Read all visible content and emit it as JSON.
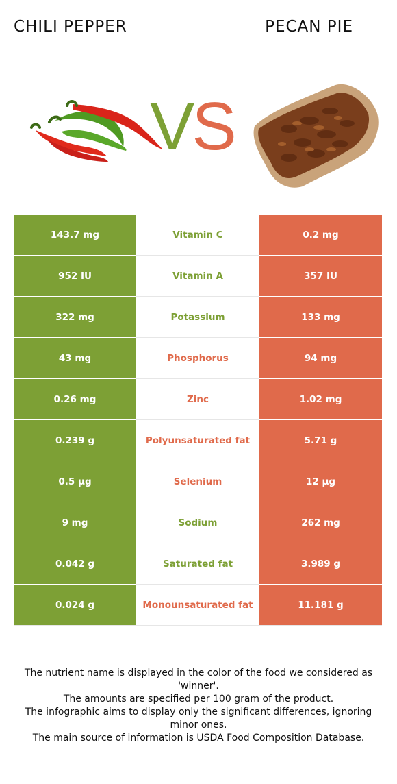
{
  "left_food": {
    "name": "CHILI PEPPER",
    "color": "#7da035",
    "image_icon": "chili-peppers-image"
  },
  "right_food": {
    "name": "PECAN PIE",
    "color": "#e06a4b",
    "image_icon": "pecan-pie-image"
  },
  "vs": {
    "v": "V",
    "s": "S"
  },
  "rows": [
    {
      "left": "143.7 mg",
      "nutrient": "Vitamin C",
      "right": "0.2 mg",
      "winner": "left"
    },
    {
      "left": "952 IU",
      "nutrient": "Vitamin A",
      "right": "357 IU",
      "winner": "left"
    },
    {
      "left": "322 mg",
      "nutrient": "Potassium",
      "right": "133 mg",
      "winner": "left"
    },
    {
      "left": "43 mg",
      "nutrient": "Phosphorus",
      "right": "94 mg",
      "winner": "right"
    },
    {
      "left": "0.26 mg",
      "nutrient": "Zinc",
      "right": "1.02 mg",
      "winner": "right"
    },
    {
      "left": "0.239 g",
      "nutrient": "Polyunsaturated fat",
      "right": "5.71 g",
      "winner": "right"
    },
    {
      "left": "0.5 µg",
      "nutrient": "Selenium",
      "right": "12 µg",
      "winner": "right"
    },
    {
      "left": "9 mg",
      "nutrient": "Sodium",
      "right": "262 mg",
      "winner": "left"
    },
    {
      "left": "0.042 g",
      "nutrient": "Saturated fat",
      "right": "3.989 g",
      "winner": "left"
    },
    {
      "left": "0.024 g",
      "nutrient": "Monounsaturated fat",
      "right": "11.181 g",
      "winner": "right"
    }
  ],
  "footer": {
    "line1": "The nutrient name is displayed in the color of the food we considered as 'winner'.",
    "line2": "The amounts are specified per 100 gram of the product.",
    "line3": "The infographic aims to display only the significant differences, ignoring minor ones.",
    "line4": "The main source of information is USDA Food Composition Database."
  }
}
